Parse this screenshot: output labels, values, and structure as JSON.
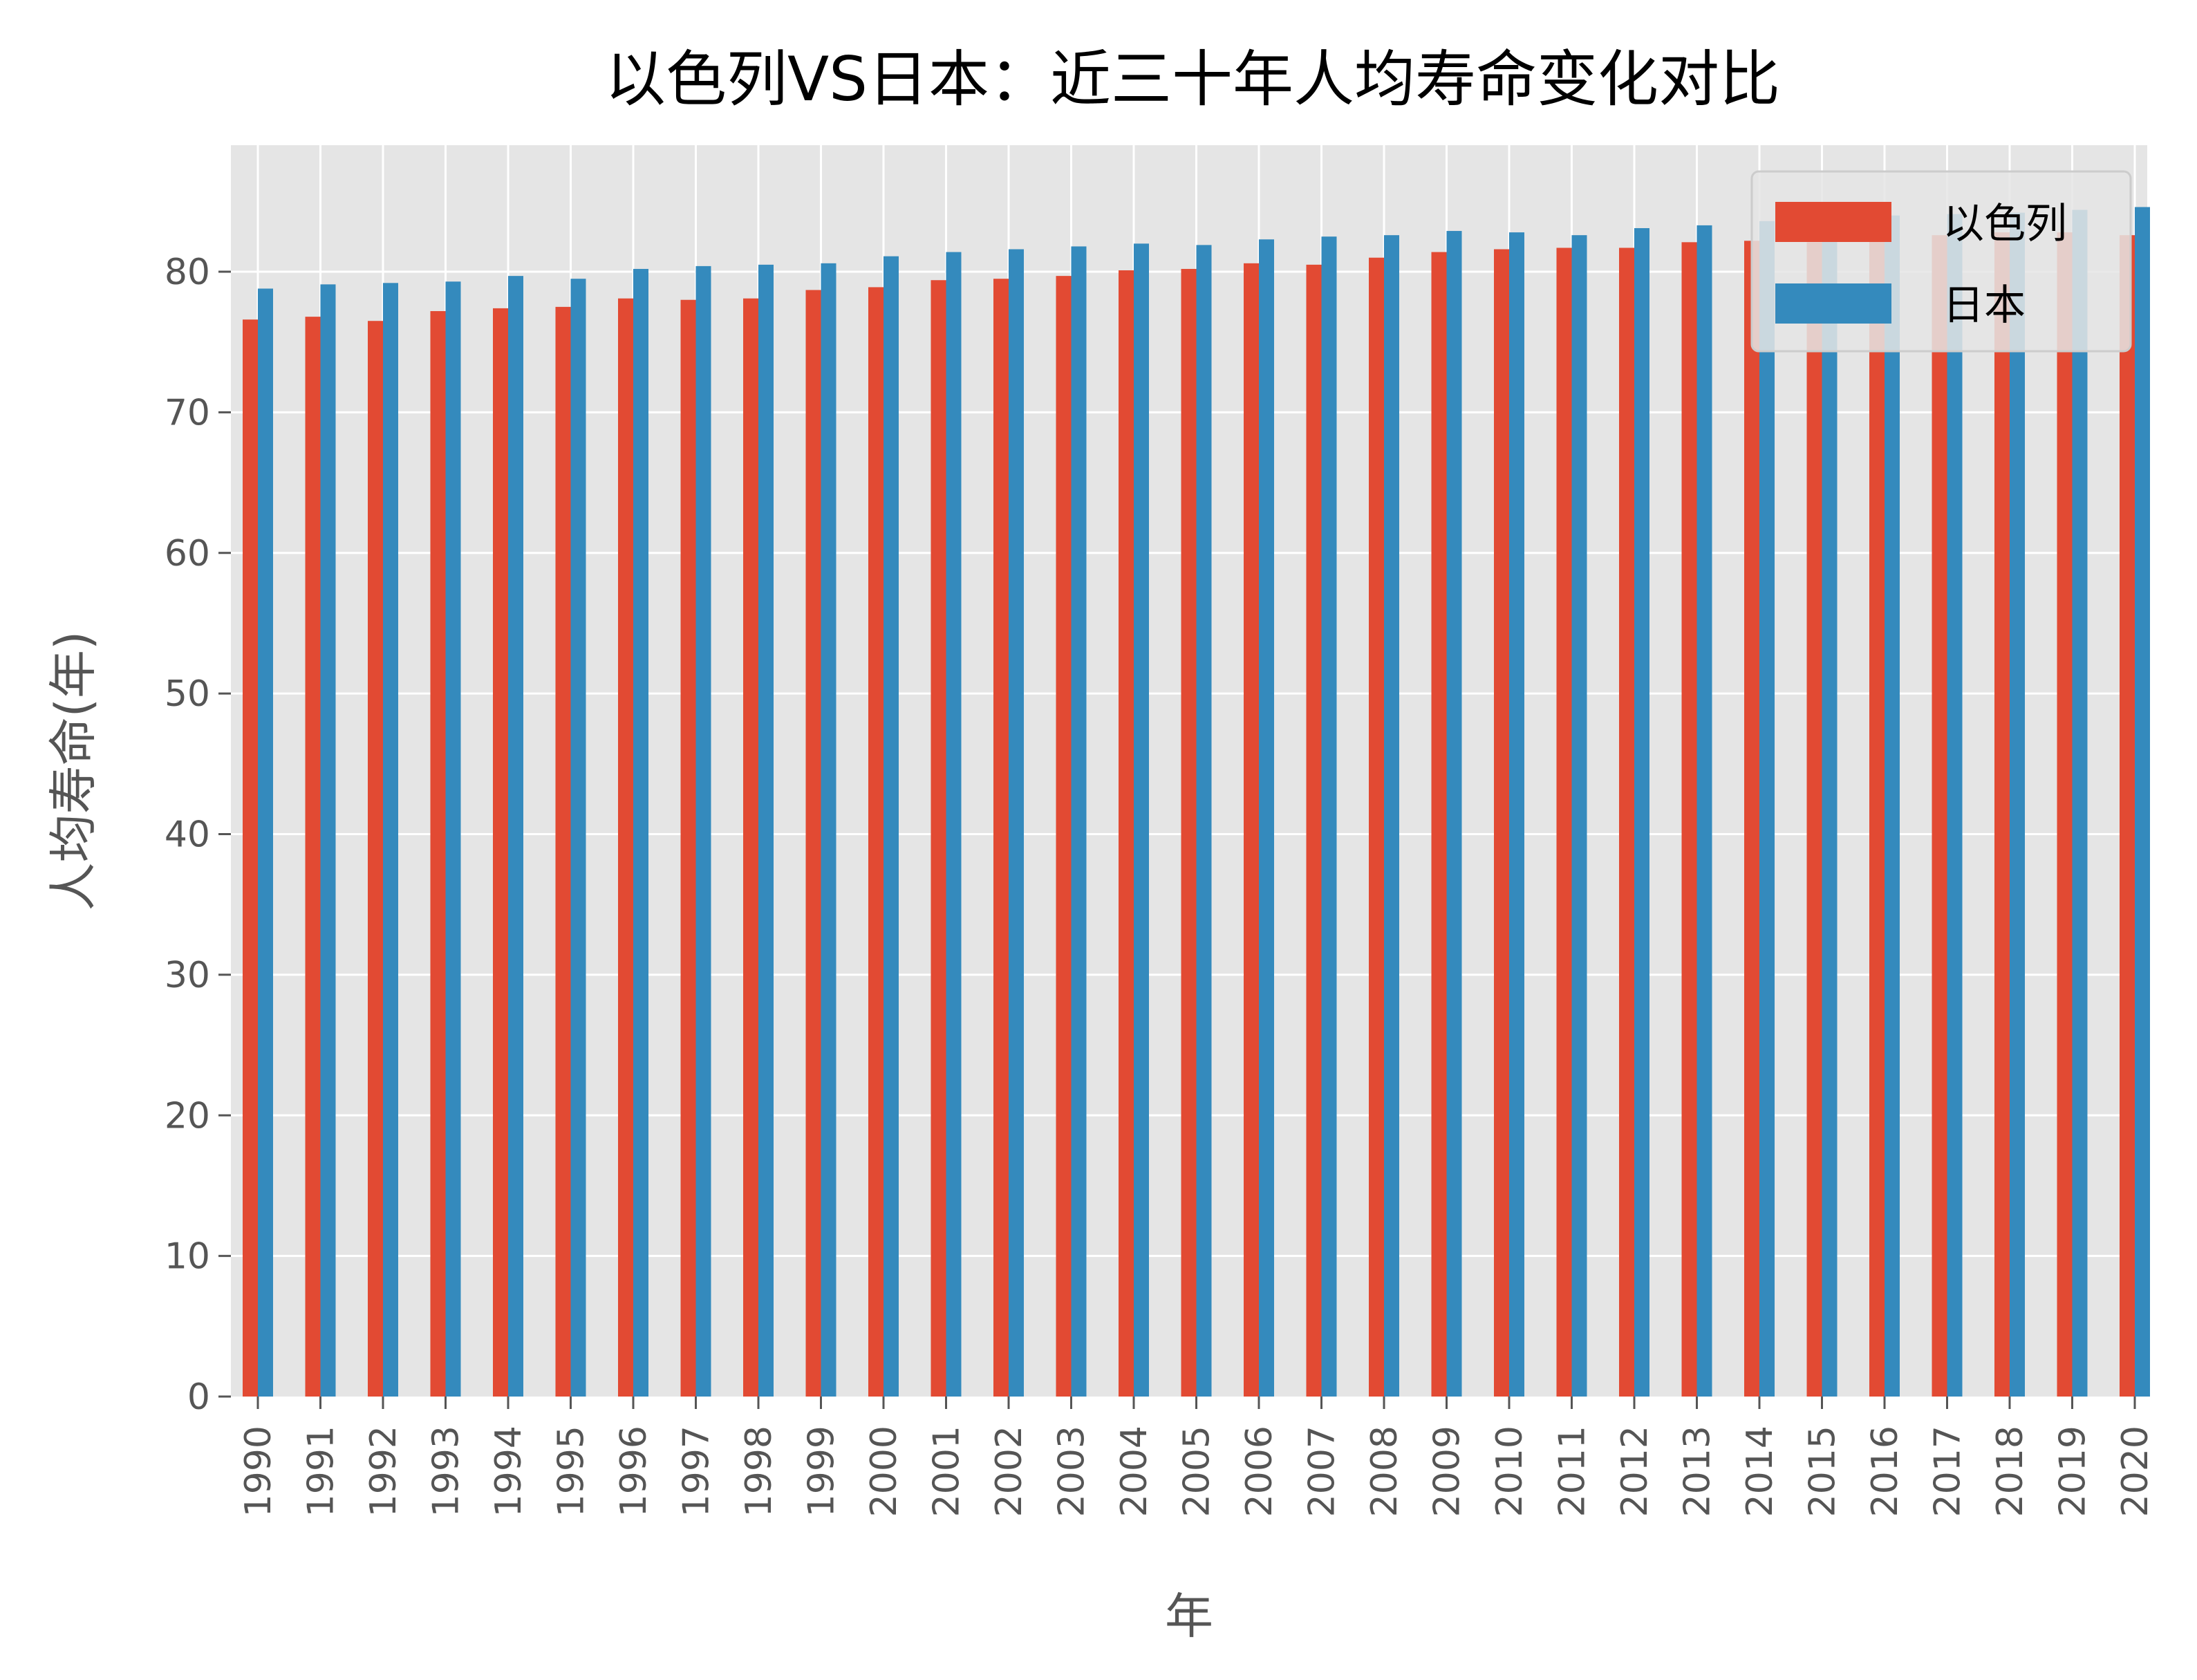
{
  "chart_data": {
    "type": "bar",
    "title": "以色列VS日本：近三十年人均寿命变化对比",
    "xlabel": "年",
    "ylabel": "人均寿命(年)",
    "ylim": [
      0,
      89
    ],
    "yticks": [
      0,
      10,
      20,
      30,
      40,
      50,
      60,
      70,
      80
    ],
    "grid": true,
    "legend_position": "top-right",
    "categories": [
      "1990",
      "1991",
      "1992",
      "1993",
      "1994",
      "1995",
      "1996",
      "1997",
      "1998",
      "1999",
      "2000",
      "2001",
      "2002",
      "2003",
      "2004",
      "2005",
      "2006",
      "2007",
      "2008",
      "2009",
      "2010",
      "2011",
      "2012",
      "2013",
      "2014",
      "2015",
      "2016",
      "2017",
      "2018",
      "2019",
      "2020"
    ],
    "series": [
      {
        "name": "以色列",
        "color": "#E24A33",
        "values": [
          76.6,
          76.8,
          76.5,
          77.2,
          77.4,
          77.5,
          78.1,
          78.0,
          78.1,
          78.7,
          78.9,
          79.4,
          79.5,
          79.7,
          80.1,
          80.2,
          80.6,
          80.5,
          81.0,
          81.4,
          81.6,
          81.7,
          81.7,
          82.1,
          82.2,
          82.1,
          82.4,
          82.6,
          82.8,
          82.8,
          82.6
        ]
      },
      {
        "name": "日本",
        "color": "#348ABD",
        "values": [
          78.8,
          79.1,
          79.2,
          79.3,
          79.7,
          79.5,
          80.2,
          80.4,
          80.5,
          80.6,
          81.1,
          81.4,
          81.6,
          81.8,
          82.0,
          81.9,
          82.3,
          82.5,
          82.6,
          82.9,
          82.8,
          82.6,
          83.1,
          83.3,
          83.6,
          83.8,
          84.0,
          84.1,
          84.2,
          84.4,
          84.6
        ]
      }
    ]
  }
}
